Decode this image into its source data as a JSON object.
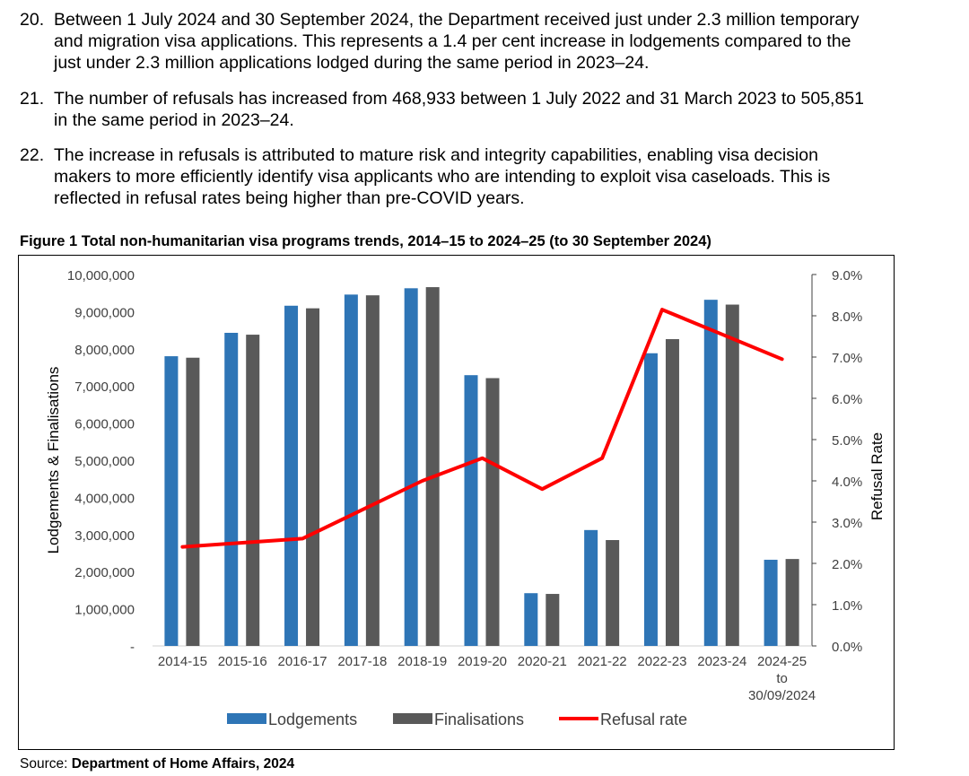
{
  "paragraphs": [
    {
      "num": "20.",
      "lines": [
        "Between 1 July 2024 and 30 September 2024, the Department received just under 2.3 million temporary",
        "and migration visa applications. This represents a 1.4 per cent increase in lodgements compared to the",
        "just under 2.3 million applications lodged during the same period in 2023–24."
      ]
    },
    {
      "num": "21.",
      "lines": [
        "The number of refusals has increased from 468,933 between 1 July 2022 and 31 March 2023 to 505,851",
        "in the same period in 2023–24."
      ]
    },
    {
      "num": "22.",
      "lines": [
        "The increase in refusals is attributed to mature risk and integrity capabilities, enabling visa decision",
        "makers to more efficiently identify visa applicants who are intending to exploit visa caseloads. This is",
        "reflected in refusal rates being higher than pre-COVID years."
      ]
    }
  ],
  "figure": {
    "title": "Figure 1 Total non-humanitarian visa programs trends, 2014–15 to 2024–25 (to 30 September 2024)"
  },
  "source": {
    "label": "Source: ",
    "value": "Department of Home Affairs, 2024"
  },
  "chart_data": {
    "type": "bar",
    "categories": [
      "2014-15",
      "2015-16",
      "2016-17",
      "2017-18",
      "2018-19",
      "2019-20",
      "2020-21",
      "2021-22",
      "2022-23",
      "2023-24",
      "2024-25\nto\n30/09/2024"
    ],
    "series": [
      {
        "name": "Lodgements",
        "type": "bar",
        "axis": "left",
        "color": "#2E75B6",
        "values": [
          7800000,
          8430000,
          9160000,
          9460000,
          9630000,
          7290000,
          1420000,
          3120000,
          7880000,
          9320000,
          2320000
        ]
      },
      {
        "name": "Finalisations",
        "type": "bar",
        "axis": "left",
        "color": "#595959",
        "values": [
          7760000,
          8380000,
          9090000,
          9440000,
          9660000,
          7210000,
          1400000,
          2850000,
          8260000,
          9190000,
          2340000
        ]
      },
      {
        "name": "Refusal rate",
        "type": "line",
        "axis": "right",
        "color": "#FF0000",
        "values": [
          2.4,
          2.5,
          2.6,
          3.3,
          4.0,
          4.55,
          3.8,
          4.55,
          8.15,
          7.55,
          6.95
        ]
      }
    ],
    "ylabel": "Lodgements & Finalisations",
    "y2label": "Refusal Rate",
    "ylim": [
      0,
      10000000
    ],
    "y2lim": [
      0,
      9
    ],
    "yticks": [
      "-",
      "1,000,000",
      "2,000,000",
      "3,000,000",
      "4,000,000",
      "5,000,000",
      "6,000,000",
      "7,000,000",
      "8,000,000",
      "9,000,000",
      "10,000,000"
    ],
    "y2ticks": [
      "0.0%",
      "1.0%",
      "2.0%",
      "3.0%",
      "4.0%",
      "5.0%",
      "6.0%",
      "7.0%",
      "8.0%",
      "9.0%"
    ],
    "legend_position": "bottom",
    "grid": false
  }
}
